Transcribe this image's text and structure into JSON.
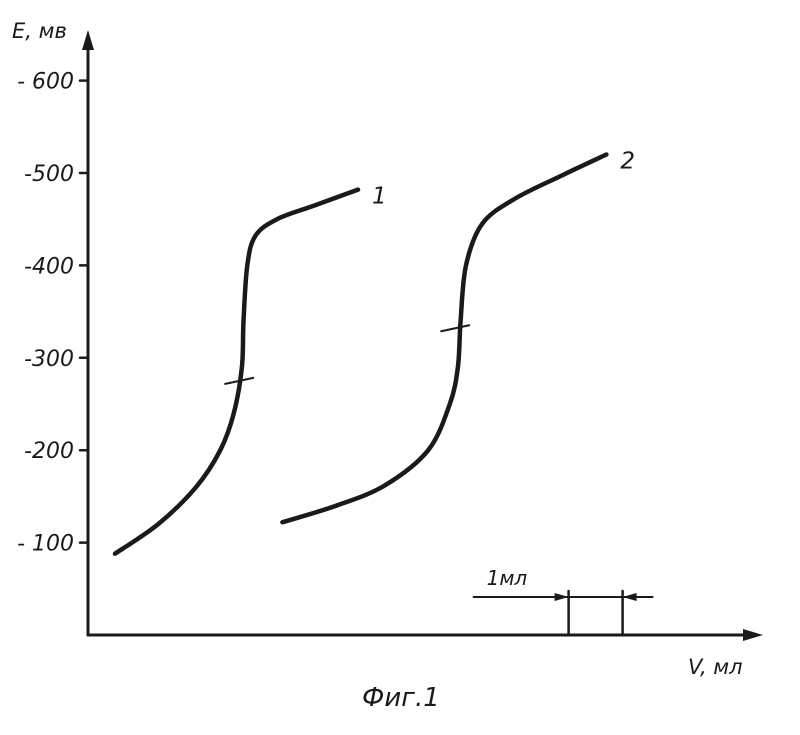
{
  "chart_data": {
    "type": "line",
    "ylabel": "E, мв",
    "xlabel": "V, мл",
    "ylim": [
      0,
      650
    ],
    "y_ticks": [
      {
        "value": 100,
        "label": "- 100"
      },
      {
        "value": 200,
        "label": "-200"
      },
      {
        "value": 300,
        "label": "-300"
      },
      {
        "value": 400,
        "label": "-400"
      },
      {
        "value": 500,
        "label": "-500"
      },
      {
        "value": 600,
        "label": "- 600"
      }
    ],
    "xlim": [
      0,
      12.4
    ],
    "scale_bar": {
      "label": "1мл",
      "from": 8.9,
      "to": 9.9
    },
    "series": [
      {
        "name": "1",
        "equivalence_point": {
          "x": 2.8,
          "y": 275
        },
        "x": [
          0.5,
          1.3,
          2.0,
          2.45,
          2.7,
          2.85,
          2.88,
          2.95,
          3.1,
          3.5,
          4.2,
          5.0
        ],
        "y": [
          88,
          120,
          160,
          200,
          240,
          290,
          340,
          400,
          432,
          450,
          465,
          482
        ]
      },
      {
        "name": "2",
        "equivalence_point": {
          "x": 6.8,
          "y": 332
        },
        "x": [
          3.6,
          4.6,
          5.5,
          6.3,
          6.7,
          6.85,
          6.9,
          7.0,
          7.3,
          7.9,
          8.8,
          9.6
        ],
        "y": [
          122,
          140,
          162,
          200,
          250,
          290,
          340,
          400,
          445,
          472,
          498,
          520
        ]
      }
    ]
  },
  "caption": "Фиг.1"
}
